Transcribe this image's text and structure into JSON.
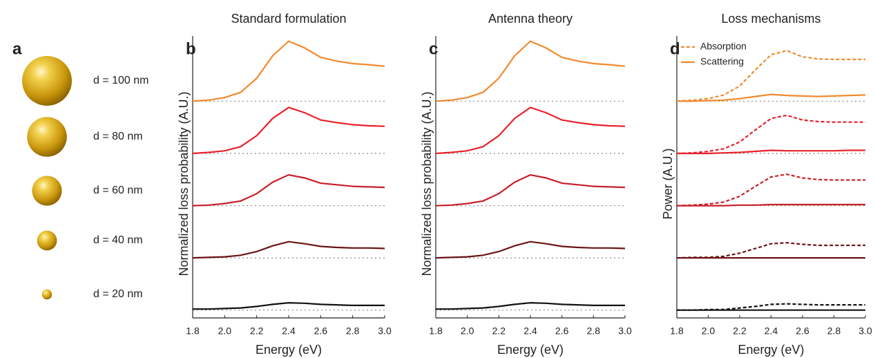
{
  "panel_a": {
    "label": "a",
    "spheres": [
      {
        "label": "d = 100 nm",
        "diameter": 100
      },
      {
        "label": "d = 80 nm",
        "diameter": 80
      },
      {
        "label": "d = 60 nm",
        "diameter": 60
      },
      {
        "label": "d = 40 nm",
        "diameter": 40
      },
      {
        "label": "d = 20 nm",
        "diameter": 20
      }
    ]
  },
  "chart_data": [
    {
      "type": "line",
      "label": "b",
      "title": "Standard formulation",
      "xlabel": "Energy (eV)",
      "ylabel": "Normalized loss probability (A.U.)",
      "x": [
        1.8,
        1.9,
        2.0,
        2.1,
        2.2,
        2.3,
        2.4,
        2.5,
        2.6,
        2.7,
        2.8,
        2.9,
        3.0
      ],
      "xlim": [
        1.8,
        3.0
      ],
      "xticks": [
        1.8,
        {
          "value": 2,
          "label": "2.0"
        },
        2.2,
        2.4,
        2.6,
        2.8,
        {
          "value": 3,
          "label": "3.0"
        }
      ],
      "ylim": [
        0,
        5.4
      ],
      "baselines": [
        0.15,
        1.15,
        2.15,
        3.15,
        4.15
      ],
      "series": [
        {
          "color": "#f08a2e",
          "values": [
            4.15,
            4.17,
            4.22,
            4.32,
            4.59,
            5.02,
            5.3,
            5.17,
            4.99,
            4.92,
            4.87,
            4.85,
            4.82
          ]
        },
        {
          "color": "#e8202a",
          "values": [
            3.15,
            3.17,
            3.2,
            3.28,
            3.49,
            3.82,
            4.03,
            3.93,
            3.79,
            3.74,
            3.7,
            3.68,
            3.67
          ]
        },
        {
          "color": "#c81e28",
          "values": [
            2.15,
            2.16,
            2.19,
            2.24,
            2.38,
            2.6,
            2.74,
            2.68,
            2.58,
            2.55,
            2.52,
            2.51,
            2.5
          ]
        },
        {
          "color": "#6b1414",
          "values": [
            1.15,
            1.16,
            1.17,
            1.2,
            1.27,
            1.38,
            1.46,
            1.42,
            1.37,
            1.35,
            1.34,
            1.34,
            1.33
          ]
        },
        {
          "color": "#111111",
          "values": [
            0.17,
            0.17,
            0.18,
            0.19,
            0.22,
            0.26,
            0.29,
            0.28,
            0.26,
            0.25,
            0.24,
            0.24,
            0.24
          ]
        }
      ]
    },
    {
      "type": "line",
      "label": "c",
      "title": "Antenna theory",
      "xlabel": "Energy (eV)",
      "ylabel": "Normalized loss probability (A.U.)",
      "x": [
        1.8,
        1.9,
        2.0,
        2.1,
        2.2,
        2.3,
        2.4,
        2.5,
        2.6,
        2.7,
        2.8,
        2.9,
        3.0
      ],
      "xlim": [
        1.8,
        3.0
      ],
      "xticks": [
        1.8,
        {
          "value": 2,
          "label": "2.0"
        },
        2.2,
        2.4,
        2.6,
        2.8,
        {
          "value": 3,
          "label": "3.0"
        }
      ],
      "ylim": [
        0,
        5.4
      ],
      "baselines": [
        0.15,
        1.15,
        2.15,
        3.15,
        4.15
      ],
      "series": [
        {
          "color": "#f08a2e",
          "values": [
            4.15,
            4.17,
            4.22,
            4.32,
            4.59,
            5.02,
            5.3,
            5.17,
            4.99,
            4.92,
            4.87,
            4.85,
            4.82
          ]
        },
        {
          "color": "#e8202a",
          "values": [
            3.15,
            3.17,
            3.2,
            3.28,
            3.49,
            3.82,
            4.03,
            3.93,
            3.79,
            3.74,
            3.7,
            3.68,
            3.67
          ]
        },
        {
          "color": "#c81e28",
          "values": [
            2.15,
            2.16,
            2.19,
            2.24,
            2.38,
            2.6,
            2.74,
            2.68,
            2.58,
            2.55,
            2.52,
            2.51,
            2.5
          ]
        },
        {
          "color": "#6b1414",
          "values": [
            1.15,
            1.16,
            1.17,
            1.2,
            1.27,
            1.38,
            1.46,
            1.42,
            1.37,
            1.35,
            1.34,
            1.34,
            1.33
          ]
        },
        {
          "color": "#111111",
          "values": [
            0.17,
            0.17,
            0.18,
            0.19,
            0.22,
            0.26,
            0.29,
            0.28,
            0.26,
            0.25,
            0.24,
            0.24,
            0.24
          ]
        }
      ]
    },
    {
      "type": "line",
      "label": "d",
      "title": "Loss mechanisms",
      "xlabel": "Energy (eV)",
      "ylabel": "Power (A.U.)",
      "x": [
        1.8,
        1.9,
        2.0,
        2.1,
        2.2,
        2.3,
        2.4,
        2.5,
        2.6,
        2.7,
        2.8,
        2.9,
        3.0
      ],
      "xlim": [
        1.8,
        3.0
      ],
      "xticks": [
        1.8,
        {
          "value": 2,
          "label": "2.0"
        },
        2.2,
        2.4,
        2.6,
        2.8,
        {
          "value": 3,
          "label": "3.0"
        }
      ],
      "ylim": [
        0,
        5.4
      ],
      "baselines": [
        0.15,
        1.15,
        2.15,
        3.15,
        4.15
      ],
      "series": [
        {
          "name": "Absorption",
          "dashed": true,
          "color": "#f08a2e",
          "values": [
            4.15,
            4.17,
            4.2,
            4.27,
            4.44,
            4.75,
            5.04,
            5.12,
            5.0,
            4.96,
            4.95,
            4.95,
            4.95
          ]
        },
        {
          "name": "Scattering",
          "dashed": false,
          "color": "#f08a2e",
          "values": [
            4.15,
            4.15,
            4.16,
            4.17,
            4.2,
            4.24,
            4.28,
            4.26,
            4.25,
            4.24,
            4.25,
            4.26,
            4.27
          ]
        },
        {
          "dashed": true,
          "color": "#e8202a",
          "values": [
            3.15,
            3.16,
            3.19,
            3.24,
            3.37,
            3.6,
            3.82,
            3.88,
            3.79,
            3.76,
            3.75,
            3.75,
            3.75
          ]
        },
        {
          "dashed": false,
          "color": "#e8202a",
          "values": [
            3.15,
            3.15,
            3.15,
            3.16,
            3.17,
            3.19,
            3.21,
            3.2,
            3.2,
            3.2,
            3.2,
            3.21,
            3.21
          ]
        },
        {
          "dashed": true,
          "color": "#c81e28",
          "values": [
            2.15,
            2.16,
            2.18,
            2.22,
            2.33,
            2.52,
            2.7,
            2.75,
            2.68,
            2.65,
            2.64,
            2.64,
            2.64
          ]
        },
        {
          "dashed": false,
          "color": "#c81e28",
          "values": [
            2.15,
            2.15,
            2.15,
            2.15,
            2.16,
            2.16,
            2.17,
            2.17,
            2.17,
            2.17,
            2.17,
            2.17,
            2.17
          ]
        },
        {
          "dashed": true,
          "color": "#6b1414",
          "values": [
            1.15,
            1.16,
            1.16,
            1.18,
            1.24,
            1.33,
            1.42,
            1.44,
            1.41,
            1.39,
            1.39,
            1.39,
            1.39
          ]
        },
        {
          "dashed": false,
          "color": "#6b1414",
          "values": [
            1.15,
            1.15,
            1.15,
            1.15,
            1.15,
            1.15,
            1.15,
            1.15,
            1.15,
            1.15,
            1.15,
            1.15,
            1.15
          ]
        },
        {
          "dashed": true,
          "color": "#111111",
          "values": [
            0.15,
            0.15,
            0.16,
            0.16,
            0.19,
            0.22,
            0.26,
            0.27,
            0.26,
            0.25,
            0.25,
            0.25,
            0.25
          ]
        },
        {
          "dashed": false,
          "color": "#111111",
          "values": [
            0.15,
            0.15,
            0.15,
            0.15,
            0.15,
            0.15,
            0.15,
            0.15,
            0.15,
            0.15,
            0.15,
            0.15,
            0.15
          ]
        }
      ]
    }
  ]
}
